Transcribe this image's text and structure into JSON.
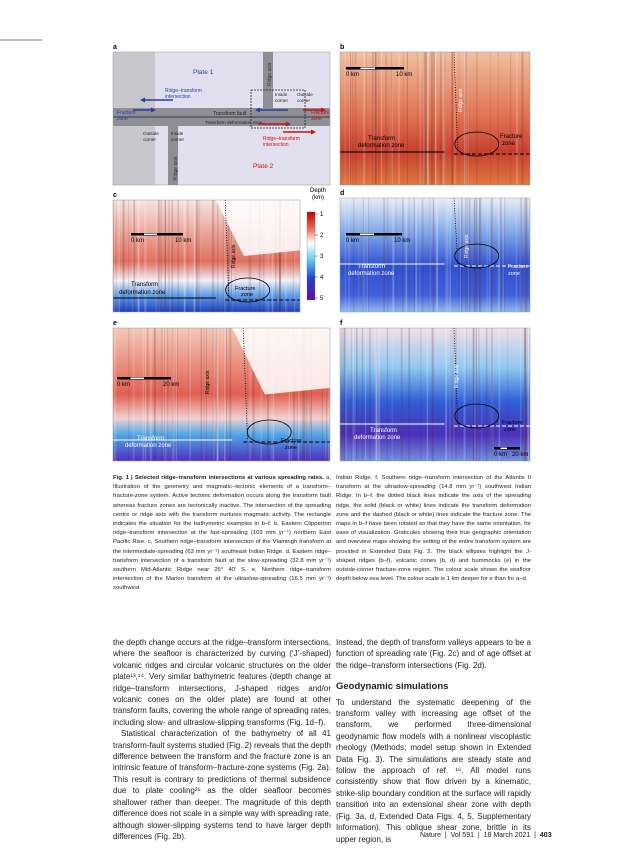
{
  "figure": {
    "panels": [
      {
        "letter": "a",
        "labels": [
          "Plate 1",
          "Ridge axis",
          "Ridge–transform",
          "intersection",
          "Inside",
          "corner",
          "Outside",
          "corner",
          "Fracture",
          "zone",
          "Transform fault",
          "Transform deformation zone",
          "Fracture",
          "zone",
          "Outside",
          "corner",
          "Inside",
          "corner",
          "Ridge axis",
          "Ridge–transform",
          "intersection",
          "Plate 2"
        ]
      },
      {
        "letter": "b",
        "labels": [
          "0 km",
          "10 km",
          "Ridge axis",
          "Transform",
          "deformation zone",
          "Fracture",
          "zone"
        ]
      },
      {
        "letter": "c",
        "labels": [
          "0 km",
          "10 km",
          "Ridge axis",
          "Transform",
          "deformation zone",
          "Fracture",
          "zone"
        ]
      },
      {
        "letter": "d",
        "labels": [
          "0 km",
          "10 km",
          "Ridge axis",
          "Transform",
          "deformation zone",
          "Fracture",
          "zone"
        ]
      },
      {
        "letter": "e",
        "labels": [
          "0 km",
          "20 km",
          "Ridge axis",
          "Transform",
          "deformation zone",
          "Fracture",
          "zone"
        ]
      },
      {
        "letter": "f",
        "labels": [
          "Ridge axis",
          "Transform",
          "deformation zone",
          "Fracture",
          "zone",
          "0 km",
          "20 km"
        ]
      }
    ],
    "colorbar": {
      "title": "Depth",
      "unit": "(km)",
      "ticks": [
        1,
        2,
        3,
        4,
        5
      ]
    }
  },
  "caption": {
    "title": "Fig. 1 | Selected ridge–transform intersections at various spreading rates.",
    "left": "a, Illustration of the geometry and magmatic–tectonic elements of a transform–fracture-zone system. Active tectonic deformation occurs along the transform fault whereas fracture zones are tectonically inactive. The intersection of the spreading centre or ridge axis with the transform nurtures magmatic activity. The rectangle indicates the situation for the bathymetric examples in b–f. b, Eastern Clipperton ridge–transform intersection at the fast-spreading (103 mm yr⁻¹) northern East Pacific Rise. c, Southern ridge–transform intersection of the Vlamingh transform at the intermediate-spreading (63 mm yr⁻¹) southeast Indian Ridge. d, Eastern ridge–transform intersection of a transform fault at the slow-spreading (32.8 mm yr⁻¹) southern Mid-Atlantic Ridge near 25° 40′ S. e, Northern ridge–transform intersection of the Marion transform at the ultraslow-spreading (16.5 mm yr⁻¹) southwest",
    "right": "Indian Ridge. f, Southern ridge–transform intersection of the Atlantis II transform at the ultraslow-spreading (14.8 mm yr⁻¹) southwest Indian Ridge. In b–f, the dotted black lines indicate the axis of the spreading ridge, the solid (black or white) lines indicate the transform deformation zone and the dashed (black or white) lines indicate the fracture zone. The maps in b–f have been rotated so that they have the same orientation, for ease of visualization. Graticules showing their true geographic orientation and overview maps showing the setting of the entire transform system are provided in Extended Data Fig. 2. The black ellipses highlight the J-shaped ridges (b–f), volcanic cones (b, d) and hummocks (e) in the outside-corner fracture-zone region. The colour scale shows the seafloor depth below sea level. The colour scale is 1 km deeper for e than for a–d."
  },
  "body": {
    "left": [
      "the depth change occurs at the ridge–transform intersections, where the seafloor is characterized by curving (‘J’-shaped) volcanic ridges and circular volcanic structures on the older plate¹³,¹⁴. Very similar bathymetric features (depth change at ridge–transform intersections, J-shaped ridges and/or volcanic cones on the older plate) are found at other transform faults, covering the whole range of spreading rates, including slow- and ultraslow-slipping transforms (Fig. 1d–f).",
      "Statistical characterization of the bathymetry of all 41 transform-fault systems studied (Fig. 2) reveals that the depth difference between the transform and the fracture zone is an intrinsic feature of transform–fracture-zone systems (Fig. 2a). This result is contrary to predictions of thermal subsidence due to plate cooling²⁵ as the older seafloor becomes shallower rather than deeper. The magnitude of this depth difference does not scale in a simple way with spreading rate, although slower-slipping systems tend to have larger depth differences (Fig. 2b)."
    ],
    "right": {
      "intro": "Instead, the depth of transform valleys appears to be a function of spreading rate (Fig. 2c) and of age offset at the ridge–transform intersections (Fig. 2d).",
      "heading": "Geodynamic simulations",
      "text": "To understand the systematic deepening of the transform valley with increasing age offset of the transform, we performed three-dimensional geodynamic flow models with a nonlinear viscoplastic rheology (Methods; model setup shown in Extended Data Fig. 3). The simulations are steady state and follow the approach of ref. ¹⁶. All model runs consistently show that flow driven by a kinematic, strike-slip boundary condition at the surface will rapidly transition into an extensional shear zone with depth (Fig. 3a, d, Extended Data Figs. 4, 5, Supplementary Information). This oblique shear zone, brittle in its upper region, is"
    }
  },
  "footer": {
    "journal": "Nature",
    "volume": "Vol 591",
    "date": "18 March 2021",
    "page": "403"
  }
}
